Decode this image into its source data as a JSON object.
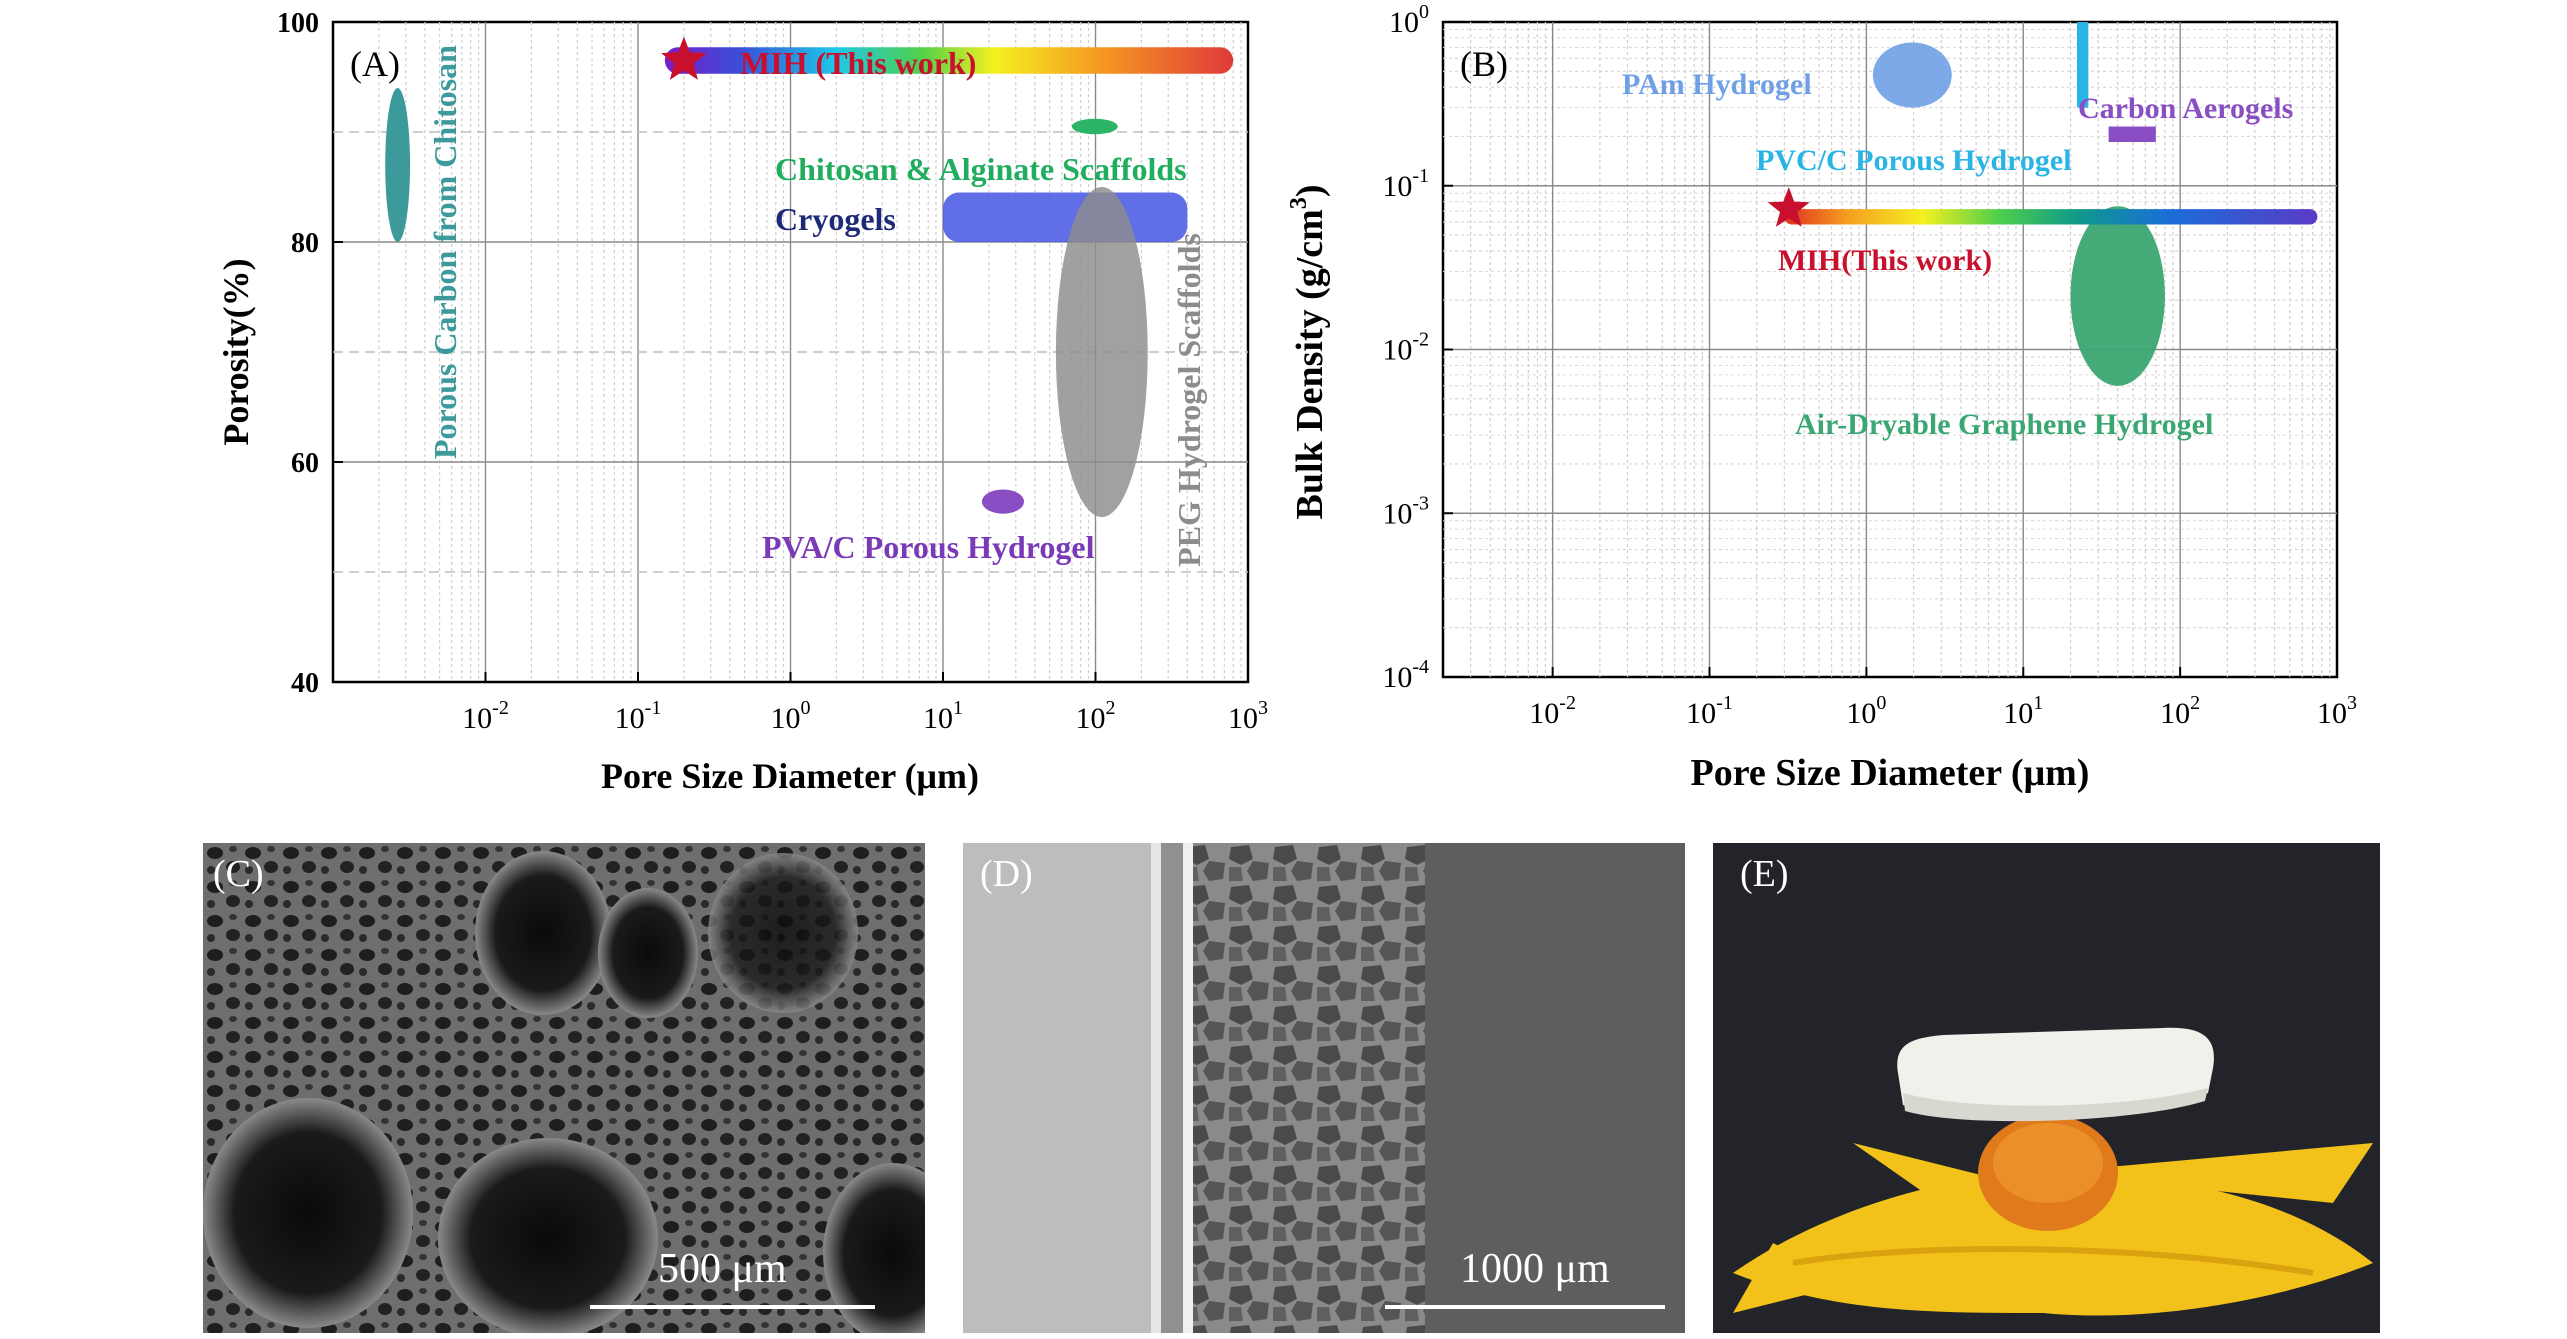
{
  "chart_data": [
    {
      "type": "scatter",
      "panel_label": "(A)",
      "xlabel": "Pore Size Diameter (μm)",
      "ylabel": "Porosity(%)",
      "x_scale": "log",
      "xlim": [
        0.001,
        1000
      ],
      "ylim": [
        40,
        100
      ],
      "x_ticks": [
        {
          "base": "10",
          "exp": "-2",
          "value": 0.01
        },
        {
          "base": "10",
          "exp": "-1",
          "value": 0.1
        },
        {
          "base": "10",
          "exp": "0",
          "value": 1
        },
        {
          "base": "10",
          "exp": "1",
          "value": 10
        },
        {
          "base": "10",
          "exp": "2",
          "value": 100
        },
        {
          "base": "10",
          "exp": "3",
          "value": 1000
        }
      ],
      "y_ticks": [
        "40",
        "60",
        "80",
        "100"
      ],
      "grid": true,
      "regions": [
        {
          "name": "MIH (This work)",
          "shape": "gradient-bar",
          "x_range": [
            0.15,
            800
          ],
          "y": 96.5,
          "y_span": [
            95.3,
            97.7
          ],
          "color": "rainbow"
        },
        {
          "name": "Porous Carbon from Chitosan",
          "shape": "ellipse",
          "x_range": [
            0.0022,
            0.0032
          ],
          "y_range": [
            80,
            94
          ],
          "color": "#3d9a9a"
        },
        {
          "name": "Chitosan & Alginate Scaffolds",
          "shape": "ellipse",
          "x_range": [
            70,
            140
          ],
          "y_range": [
            89.8,
            91.2
          ],
          "color": "#2db567"
        },
        {
          "name": "Cryogels",
          "shape": "rounded-bar",
          "x_range": [
            10,
            400
          ],
          "y_range": [
            80,
            84.5
          ],
          "color": "#4f5ee6"
        },
        {
          "name": "PEG Hydrogel Scaffolds",
          "shape": "ellipse",
          "x_range": [
            55,
            220
          ],
          "y_range": [
            55,
            85
          ],
          "color": "#8c8c8c"
        },
        {
          "name": "PVA/C Porous Hydrogel",
          "shape": "ellipse",
          "x_range": [
            18,
            34
          ],
          "y_range": [
            55.3,
            57.5
          ],
          "color": "#8a4ec4"
        }
      ],
      "marker": {
        "name": "MIH (This work)",
        "x": 0.2,
        "y": 96.5,
        "color": "#c8102e",
        "symbol": "star"
      }
    },
    {
      "type": "scatter",
      "panel_label": "(B)",
      "xlabel": "Pore Size Diameter (μm)",
      "ylabel": "Bulk Density (g/cm3)",
      "ylabel_base": "Bulk Density (g/cm",
      "ylabel_sup": "3",
      "ylabel_end": ")",
      "x_scale": "log",
      "y_scale": "log",
      "xlim": [
        0.002,
        1000
      ],
      "ylim": [
        0.0001,
        1
      ],
      "x_ticks": [
        {
          "base": "10",
          "exp": "-2",
          "value": 0.01
        },
        {
          "base": "10",
          "exp": "-1",
          "value": 0.1
        },
        {
          "base": "10",
          "exp": "0",
          "value": 1
        },
        {
          "base": "10",
          "exp": "1",
          "value": 10
        },
        {
          "base": "10",
          "exp": "2",
          "value": 100
        },
        {
          "base": "10",
          "exp": "3",
          "value": 1000
        }
      ],
      "y_ticks": [
        {
          "base": "10",
          "exp": "-4",
          "value": 0.0001
        },
        {
          "base": "10",
          "exp": "-3",
          "value": 0.001
        },
        {
          "base": "10",
          "exp": "-2",
          "value": 0.01
        },
        {
          "base": "10",
          "exp": "-1",
          "value": 0.1
        },
        {
          "base": "10",
          "exp": "0",
          "value": 1
        }
      ],
      "grid": true,
      "regions": [
        {
          "name": "PAm Hydrogel",
          "shape": "ellipse",
          "x_range": [
            1.1,
            3.5
          ],
          "y_range": [
            0.3,
            0.75
          ],
          "color": "#6fa0e6"
        },
        {
          "name": "PVC/C Porous Hydrogel",
          "shape": "bar",
          "x_range": [
            22,
            26
          ],
          "y_range": [
            0.3,
            1
          ],
          "color": "#29b4e6"
        },
        {
          "name": "Carbon Aerogels",
          "shape": "bar",
          "x_range": [
            35,
            70
          ],
          "y_range": [
            0.185,
            0.23
          ],
          "color": "#8a4ec4"
        },
        {
          "name": "MIH(This work)",
          "shape": "gradient-bar",
          "x_range": [
            0.3,
            750
          ],
          "y": 0.065,
          "y_span": [
            0.058,
            0.072
          ],
          "color": "rainbow"
        },
        {
          "name": "Air-Dryable Graphene Hydrogel",
          "shape": "ellipse",
          "x_range": [
            20,
            80
          ],
          "y_range": [
            0.006,
            0.075
          ],
          "color": "#3aa772"
        }
      ],
      "marker": {
        "name": "MIH(This work)",
        "x": 0.32,
        "y": 0.072,
        "color": "#c8102e",
        "symbol": "star"
      }
    }
  ],
  "panels": {
    "C": {
      "label": "(C)",
      "scale_text": "500 μm"
    },
    "D": {
      "label": "(D)",
      "scale_text": "1000 μm"
    },
    "E": {
      "label": "(E)"
    }
  }
}
